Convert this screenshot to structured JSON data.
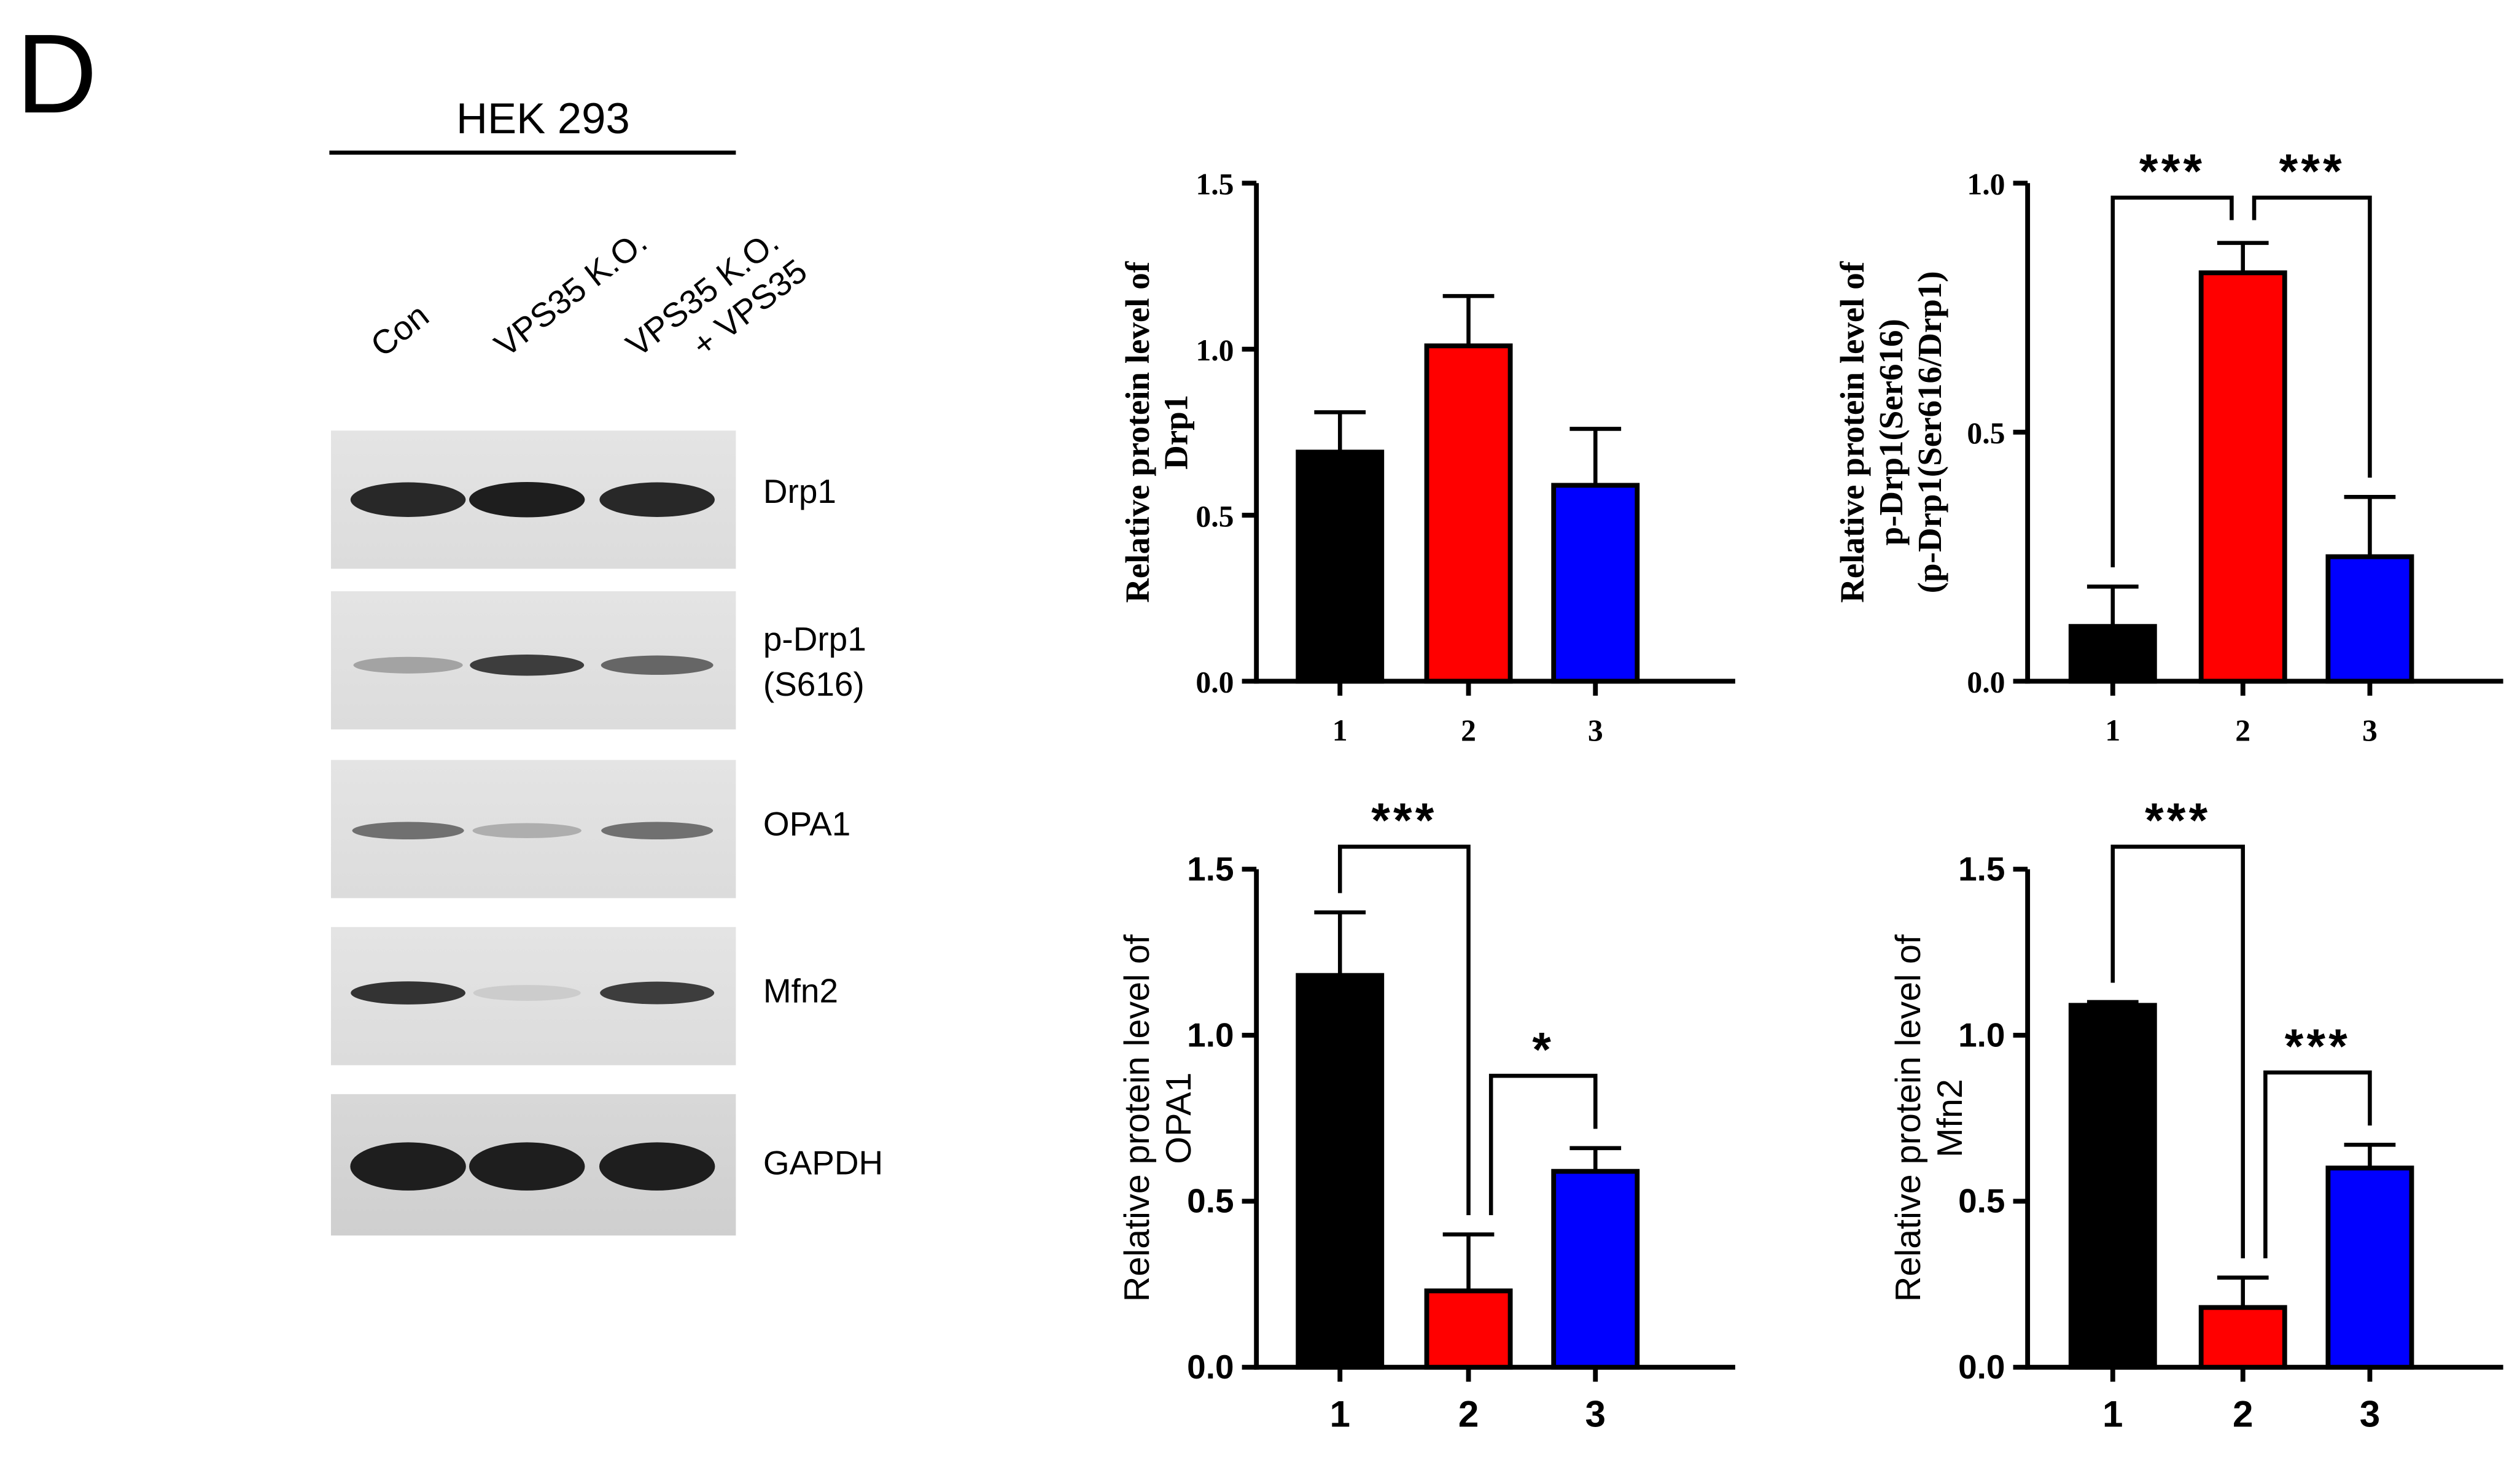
{
  "panel_label": "D",
  "blot": {
    "cell_line": "HEK 293",
    "lanes": [
      "Con",
      "VPS35 K.O.",
      "VPS35 K.O.",
      "+ VPS35"
    ],
    "proteins": [
      "Drp1",
      "p-Drp1",
      "(S616)",
      "OPA1",
      "Mfn2",
      "GAPDH"
    ],
    "band_intensity": {
      "Drp1": [
        0.95,
        1.0,
        0.95
      ],
      "p-Drp1": [
        0.35,
        0.85,
        0.65
      ],
      "OPA1": [
        0.6,
        0.3,
        0.6
      ],
      "Mfn2": [
        0.9,
        0.15,
        0.85
      ],
      "GAPDH": [
        1.0,
        1.0,
        1.0
      ]
    }
  },
  "chart_data": [
    {
      "type": "bar",
      "categories": [
        "1",
        "2",
        "3"
      ],
      "values": [
        0.69,
        1.01,
        0.59
      ],
      "errors": [
        0.12,
        0.15,
        0.17
      ],
      "colors": [
        "#000000",
        "#ff0000",
        "#0000ff"
      ],
      "ylim": [
        0,
        1.5
      ],
      "yticks": [
        "0.0",
        "0.5",
        "1.0",
        "1.5"
      ],
      "ylabel_lines": [
        "Relative protein level of",
        "Drp1"
      ],
      "font": "serif",
      "significance": []
    },
    {
      "type": "bar",
      "categories": [
        "1",
        "2",
        "3"
      ],
      "values": [
        0.11,
        0.82,
        0.25
      ],
      "errors": [
        0.08,
        0.06,
        0.12
      ],
      "colors": [
        "#000000",
        "#ff0000",
        "#0000ff"
      ],
      "ylim": [
        0,
        1.0
      ],
      "yticks": [
        "0.0",
        "0.5",
        "1.0"
      ],
      "ylabel_lines": [
        "Relative protein level of",
        "p-Drp1(Ser616)",
        "(p-Drp1(Ser616/Drp1)"
      ],
      "font": "serif",
      "significance": [
        {
          "from": 0,
          "to": 1,
          "label": "***"
        },
        {
          "from": 1,
          "to": 2,
          "label": "***"
        }
      ]
    },
    {
      "type": "bar",
      "categories": [
        "1",
        "2",
        "3"
      ],
      "values": [
        1.18,
        0.23,
        0.59
      ],
      "errors": [
        0.19,
        0.17,
        0.07
      ],
      "colors": [
        "#000000",
        "#ff0000",
        "#0000ff"
      ],
      "ylim": [
        0,
        1.5
      ],
      "yticks": [
        "0.0",
        "0.5",
        "1.0",
        "1.5"
      ],
      "ylabel_lines": [
        "Relative protein level of",
        "OPA1"
      ],
      "font": "sans",
      "significance": [
        {
          "from": 0,
          "to": 1,
          "label": "***"
        },
        {
          "from": 1,
          "to": 2,
          "label": "*"
        }
      ]
    },
    {
      "type": "bar",
      "categories": [
        "1",
        "2",
        "3"
      ],
      "values": [
        1.09,
        0.18,
        0.6
      ],
      "errors": [
        0.01,
        0.09,
        0.07
      ],
      "colors": [
        "#000000",
        "#ff0000",
        "#0000ff"
      ],
      "ylim": [
        0,
        1.5
      ],
      "yticks": [
        "0.0",
        "0.5",
        "1.0",
        "1.5"
      ],
      "ylabel_lines": [
        "Relative protein level of",
        "Mfn2"
      ],
      "font": "sans",
      "significance": [
        {
          "from": 0,
          "to": 1,
          "label": "***"
        },
        {
          "from": 1,
          "to": 2,
          "label": "***"
        }
      ]
    }
  ]
}
